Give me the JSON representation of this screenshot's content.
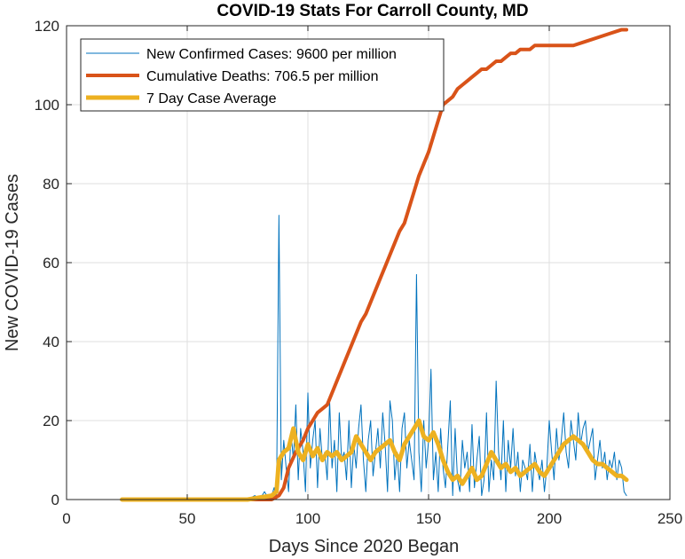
{
  "chart_data": {
    "type": "line",
    "title": "COVID-19 Stats For Carroll County, MD",
    "xlabel": "Days Since 2020 Began",
    "ylabel": "New COVID-19 Cases",
    "xlim": [
      0,
      250
    ],
    "ylim": [
      0,
      120
    ],
    "xticks": [
      0,
      50,
      100,
      150,
      200,
      250
    ],
    "yticks": [
      0,
      20,
      40,
      60,
      80,
      100,
      120
    ],
    "grid": true,
    "legend_position": "top-left",
    "series": [
      {
        "name": "New Confirmed Cases: 9600 per million",
        "color": "#0072BD",
        "x": [
          23,
          30,
          40,
          50,
          60,
          70,
          75,
          78,
          80,
          82,
          84,
          85,
          86,
          87,
          88,
          89,
          90,
          91,
          92,
          93,
          94,
          95,
          96,
          97,
          98,
          99,
          100,
          101,
          102,
          103,
          104,
          105,
          106,
          107,
          108,
          109,
          110,
          111,
          112,
          113,
          114,
          115,
          116,
          117,
          118,
          119,
          120,
          121,
          122,
          123,
          124,
          125,
          126,
          127,
          128,
          129,
          130,
          131,
          132,
          133,
          134,
          135,
          136,
          137,
          138,
          139,
          140,
          141,
          142,
          143,
          144,
          145,
          146,
          147,
          148,
          149,
          150,
          151,
          152,
          153,
          154,
          155,
          156,
          157,
          158,
          159,
          160,
          161,
          162,
          163,
          164,
          165,
          166,
          167,
          168,
          169,
          170,
          171,
          172,
          173,
          174,
          175,
          176,
          177,
          178,
          179,
          180,
          181,
          182,
          183,
          184,
          185,
          186,
          187,
          188,
          189,
          190,
          191,
          192,
          193,
          194,
          195,
          196,
          197,
          198,
          199,
          200,
          201,
          202,
          203,
          204,
          205,
          206,
          207,
          208,
          209,
          210,
          211,
          212,
          213,
          214,
          215,
          216,
          217,
          218,
          219,
          220,
          221,
          222,
          223,
          224,
          225,
          226,
          227,
          228,
          229,
          230,
          231,
          232
        ],
        "y": [
          0,
          0,
          0,
          0,
          0,
          0,
          0,
          1,
          0,
          2,
          0,
          1,
          3,
          0,
          72,
          5,
          15,
          8,
          2,
          17,
          10,
          24,
          5,
          18,
          12,
          2,
          27,
          8,
          15,
          20,
          3,
          18,
          10,
          12,
          5,
          25,
          8,
          15,
          2,
          22,
          10,
          12,
          5,
          20,
          3,
          14,
          8,
          18,
          24,
          10,
          2,
          15,
          20,
          6,
          12,
          18,
          8,
          22,
          14,
          2,
          25,
          20,
          5,
          12,
          2,
          18,
          22,
          8,
          15,
          10,
          5,
          57,
          12,
          2,
          20,
          8,
          15,
          33,
          5,
          12,
          2,
          18,
          8,
          3,
          14,
          25,
          1,
          18,
          5,
          2,
          15,
          8,
          12,
          2,
          19,
          3,
          10,
          16,
          1,
          5,
          22,
          2,
          10,
          5,
          30,
          12,
          5,
          20,
          2,
          15,
          8,
          18,
          6,
          12,
          2,
          10,
          8,
          5,
          14,
          2,
          12,
          8,
          5,
          10,
          2,
          8,
          20,
          12,
          5,
          18,
          10,
          15,
          22,
          12,
          8,
          20,
          15,
          10,
          22,
          14,
          18,
          20,
          12,
          15,
          18,
          5,
          10,
          15,
          8,
          12,
          5,
          10,
          8,
          12,
          5,
          10,
          8,
          2,
          1
        ],
        "line_width": 1
      },
      {
        "name": "Cumulative Deaths: 706.5 per million",
        "color": "#D95319",
        "x": [
          23,
          50,
          75,
          85,
          88,
          90,
          92,
          95,
          98,
          100,
          102,
          104,
          106,
          108,
          110,
          112,
          114,
          116,
          118,
          120,
          122,
          124,
          126,
          128,
          130,
          132,
          134,
          136,
          138,
          140,
          142,
          144,
          146,
          148,
          150,
          152,
          154,
          156,
          158,
          160,
          162,
          164,
          166,
          168,
          170,
          172,
          174,
          176,
          178,
          180,
          182,
          184,
          186,
          188,
          190,
          192,
          194,
          196,
          198,
          200,
          205,
          210,
          215,
          220,
          225,
          230,
          232
        ],
        "y": [
          0,
          0,
          0,
          0,
          1,
          3,
          8,
          12,
          15,
          18,
          20,
          22,
          23,
          24,
          27,
          30,
          33,
          36,
          39,
          42,
          45,
          47,
          50,
          53,
          56,
          59,
          62,
          65,
          68,
          70,
          74,
          78,
          82,
          85,
          88,
          92,
          96,
          100,
          101,
          102,
          104,
          105,
          106,
          107,
          108,
          109,
          109,
          110,
          111,
          111,
          112,
          113,
          113,
          114,
          114,
          114,
          115,
          115,
          115,
          115,
          115,
          115,
          116,
          117,
          118,
          119,
          119
        ],
        "line_width": 4
      },
      {
        "name": "7 Day Case Average",
        "color": "#EDB120",
        "x": [
          23,
          50,
          75,
          80,
          85,
          87,
          88,
          89,
          90,
          92,
          94,
          96,
          98,
          100,
          102,
          104,
          106,
          108,
          110,
          112,
          114,
          116,
          118,
          120,
          122,
          124,
          126,
          128,
          130,
          132,
          134,
          136,
          138,
          140,
          142,
          144,
          146,
          148,
          150,
          152,
          154,
          156,
          158,
          160,
          162,
          164,
          166,
          168,
          170,
          172,
          174,
          176,
          178,
          180,
          182,
          184,
          186,
          188,
          190,
          192,
          194,
          196,
          198,
          200,
          202,
          204,
          206,
          208,
          210,
          212,
          214,
          216,
          218,
          220,
          222,
          224,
          226,
          228,
          230,
          232
        ],
        "y": [
          0,
          0,
          0,
          0.5,
          1,
          2,
          10,
          11,
          12,
          13,
          18,
          12,
          10,
          14,
          11,
          13,
          10,
          12,
          11,
          12,
          10,
          11,
          12,
          16,
          14,
          12,
          10,
          12,
          13,
          14,
          15,
          12,
          10,
          14,
          16,
          18,
          20,
          16,
          15,
          17,
          14,
          10,
          7,
          5,
          6,
          4,
          6,
          8,
          5,
          6,
          9,
          12,
          10,
          8,
          9,
          7,
          8,
          6,
          7,
          8,
          9,
          7,
          6,
          8,
          10,
          12,
          14,
          15,
          16,
          15,
          14,
          12,
          10,
          9,
          9,
          8,
          7,
          6,
          6,
          5
        ],
        "line_width": 5
      }
    ]
  }
}
